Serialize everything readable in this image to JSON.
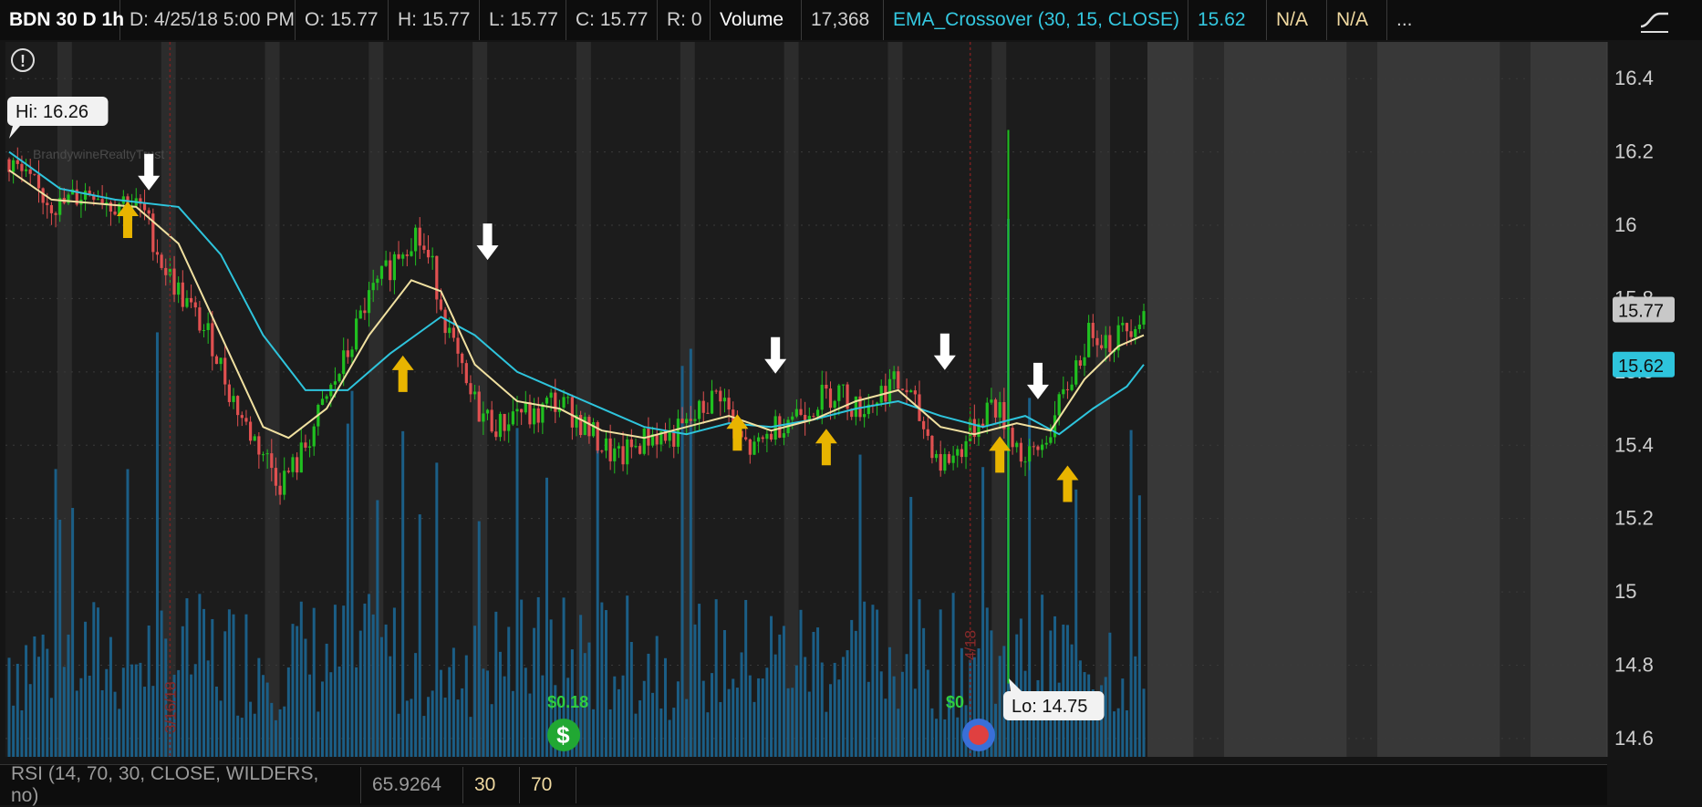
{
  "header": {
    "symbol": "BDN 30 D 1h",
    "date": "D:  4/25/18 5:00 PM",
    "open": "O:  15.77",
    "high": "H:  15.77",
    "low": "L:  15.77",
    "close": "C:  15.77",
    "range": "R:  0",
    "volume_label": "Volume",
    "volume_value": "17,368",
    "study": "EMA_Crossover (30, 15, CLOSE)",
    "study_value": "15.62",
    "na1": "N/A",
    "na2": "N/A",
    "more": "..."
  },
  "footer": {
    "rsi": "RSI (14, 70, 30, CLOSE, WILDERS, no)",
    "rsi_value": "65.9264",
    "level_low": "30",
    "level_high": "70"
  },
  "chart_data": {
    "type": "candlestick",
    "yticks": [
      "16.4",
      "16.2",
      "16",
      "15.8",
      "15.6",
      "15.4",
      "15.2",
      "15",
      "14.8",
      "14.6"
    ],
    "ylim": [
      14.55,
      16.5
    ],
    "hi_label": "Hi: 16.26",
    "lo_label": "Lo: 14.75",
    "last_price_label": "15.77",
    "ema_price_label": "15.62",
    "watermark": "BrandywineRealtyTrust",
    "dividend_labels": [
      "$0.18",
      "$0"
    ],
    "date_marker_labels": [
      "3/16/18",
      "4/18"
    ],
    "close_path": [
      [
        0,
        16.18
      ],
      [
        4,
        16.12
      ],
      [
        8,
        16.08
      ],
      [
        12,
        16.05
      ],
      [
        16,
        16.08
      ],
      [
        20,
        16.1
      ],
      [
        24,
        16.06
      ],
      [
        28,
        16.07
      ],
      [
        32,
        16.03
      ],
      [
        36,
        15.9
      ],
      [
        40,
        15.82
      ],
      [
        44,
        15.75
      ],
      [
        48,
        15.68
      ],
      [
        52,
        15.55
      ],
      [
        56,
        15.45
      ],
      [
        60,
        15.38
      ],
      [
        64,
        15.3
      ],
      [
        68,
        15.35
      ],
      [
        72,
        15.45
      ],
      [
        76,
        15.55
      ],
      [
        80,
        15.65
      ],
      [
        84,
        15.78
      ],
      [
        88,
        15.85
      ],
      [
        92,
        15.93
      ],
      [
        96,
        15.98
      ],
      [
        100,
        15.88
      ],
      [
        104,
        15.7
      ],
      [
        108,
        15.55
      ],
      [
        112,
        15.48
      ],
      [
        116,
        15.45
      ],
      [
        120,
        15.5
      ],
      [
        124,
        15.47
      ],
      [
        128,
        15.52
      ],
      [
        132,
        15.5
      ],
      [
        136,
        15.45
      ],
      [
        140,
        15.4
      ],
      [
        144,
        15.36
      ],
      [
        148,
        15.4
      ],
      [
        152,
        15.43
      ],
      [
        156,
        15.42
      ],
      [
        160,
        15.45
      ],
      [
        164,
        15.5
      ],
      [
        168,
        15.55
      ],
      [
        172,
        15.42
      ],
      [
        176,
        15.38
      ],
      [
        180,
        15.44
      ],
      [
        184,
        15.48
      ],
      [
        188,
        15.5
      ],
      [
        192,
        15.53
      ],
      [
        196,
        15.55
      ],
      [
        200,
        15.5
      ],
      [
        204,
        15.52
      ],
      [
        208,
        15.57
      ],
      [
        212,
        15.55
      ],
      [
        216,
        15.45
      ],
      [
        220,
        15.35
      ],
      [
        224,
        15.38
      ],
      [
        228,
        15.45
      ],
      [
        232,
        15.52
      ],
      [
        236,
        15.45
      ],
      [
        240,
        15.35
      ],
      [
        244,
        15.4
      ],
      [
        248,
        15.5
      ],
      [
        252,
        15.62
      ],
      [
        256,
        15.72
      ],
      [
        260,
        15.68
      ],
      [
        264,
        15.72
      ],
      [
        268,
        15.77
      ]
    ],
    "ema_fast": [
      [
        0,
        16.15
      ],
      [
        10,
        16.07
      ],
      [
        20,
        16.06
      ],
      [
        30,
        16.05
      ],
      [
        40,
        15.95
      ],
      [
        50,
        15.7
      ],
      [
        60,
        15.45
      ],
      [
        66,
        15.42
      ],
      [
        75,
        15.5
      ],
      [
        85,
        15.7
      ],
      [
        95,
        15.85
      ],
      [
        102,
        15.82
      ],
      [
        110,
        15.62
      ],
      [
        120,
        15.52
      ],
      [
        130,
        15.5
      ],
      [
        140,
        15.44
      ],
      [
        150,
        15.42
      ],
      [
        160,
        15.45
      ],
      [
        170,
        15.48
      ],
      [
        180,
        15.44
      ],
      [
        190,
        15.47
      ],
      [
        200,
        15.52
      ],
      [
        210,
        15.55
      ],
      [
        220,
        15.45
      ],
      [
        228,
        15.43
      ],
      [
        238,
        15.46
      ],
      [
        246,
        15.44
      ],
      [
        254,
        15.58
      ],
      [
        262,
        15.67
      ],
      [
        268,
        15.7
      ]
    ],
    "ema_slow": [
      [
        0,
        16.2
      ],
      [
        12,
        16.1
      ],
      [
        25,
        16.07
      ],
      [
        40,
        16.05
      ],
      [
        50,
        15.92
      ],
      [
        60,
        15.7
      ],
      [
        70,
        15.55
      ],
      [
        80,
        15.55
      ],
      [
        90,
        15.65
      ],
      [
        102,
        15.75
      ],
      [
        110,
        15.7
      ],
      [
        120,
        15.6
      ],
      [
        130,
        15.55
      ],
      [
        140,
        15.5
      ],
      [
        150,
        15.45
      ],
      [
        160,
        15.43
      ],
      [
        170,
        15.46
      ],
      [
        180,
        15.45
      ],
      [
        190,
        15.47
      ],
      [
        200,
        15.5
      ],
      [
        210,
        15.52
      ],
      [
        220,
        15.48
      ],
      [
        230,
        15.45
      ],
      [
        240,
        15.48
      ],
      [
        248,
        15.43
      ],
      [
        256,
        15.5
      ],
      [
        264,
        15.56
      ],
      [
        268,
        15.62
      ]
    ],
    "buy_signals": [
      [
        28,
        16.0
      ],
      [
        93,
        15.58
      ],
      [
        172,
        15.42
      ],
      [
        193,
        15.38
      ],
      [
        234,
        15.36
      ],
      [
        250,
        15.28
      ]
    ],
    "sell_signals": [
      [
        33,
        16.16
      ],
      [
        113,
        15.97
      ],
      [
        181,
        15.66
      ],
      [
        221,
        15.67
      ],
      [
        243,
        15.59
      ]
    ],
    "colors": {
      "up": "#20c020",
      "down": "#e05050",
      "ema_fast": "#f0e0a0",
      "ema_slow": "#2ec4dc",
      "volume": "#1b5e86",
      "buy_arrow": "#e8b400",
      "sell_arrow": "#ffffff",
      "price_badge_ema": "#2ec4dc"
    }
  }
}
